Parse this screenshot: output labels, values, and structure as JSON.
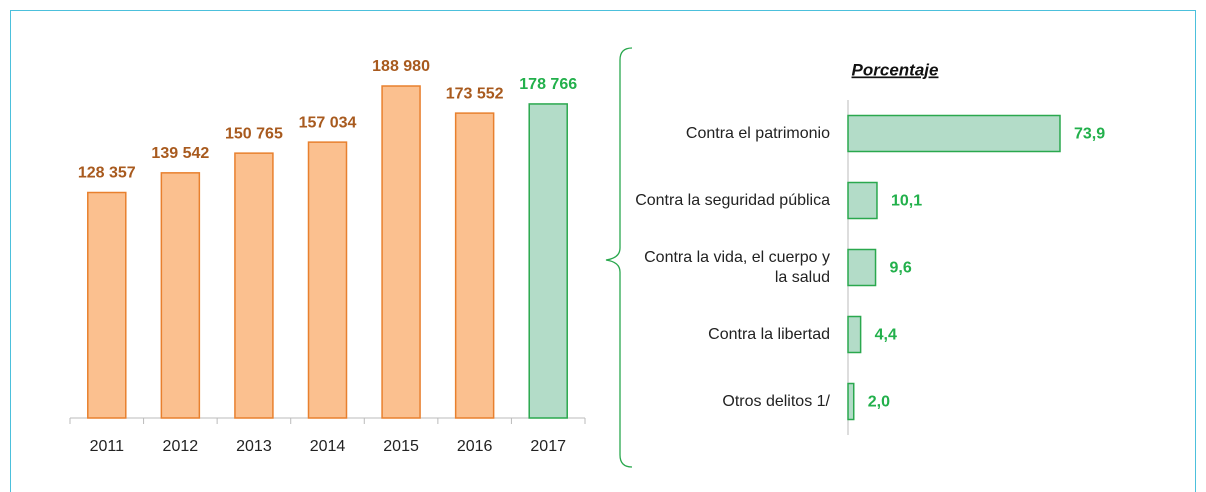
{
  "chart_data": [
    {
      "type": "bar",
      "categories": [
        "2011",
        "2012",
        "2013",
        "2014",
        "2015",
        "2016",
        "2017"
      ],
      "values": [
        128357,
        139542,
        150765,
        157034,
        188980,
        173552,
        178766
      ],
      "value_labels": [
        "128 357",
        "139 542",
        "150 765",
        "157 034",
        "188 980",
        "173 552",
        "178 766"
      ],
      "colors": [
        "#fbc08f",
        "#fbc08f",
        "#fbc08f",
        "#fbc08f",
        "#fbc08f",
        "#fbc08f",
        "#b3dcc8"
      ],
      "edge_colors": [
        "#e8802e",
        "#e8802e",
        "#e8802e",
        "#e8802e",
        "#e8802e",
        "#e8802e",
        "#2aa84e"
      ],
      "label_colors": [
        "#a85a1e",
        "#a85a1e",
        "#a85a1e",
        "#a85a1e",
        "#a85a1e",
        "#a85a1e",
        "#22b04b"
      ]
    },
    {
      "type": "hbar",
      "title": "Porcentaje",
      "categories": [
        "Contra el patrimonio",
        "Contra la seguridad pública",
        "Contra la vida, el cuerpo y la salud",
        "Contra la libertad",
        "Otros delitos 1/"
      ],
      "values": [
        73.9,
        10.1,
        9.6,
        4.4,
        2.0
      ],
      "value_labels": [
        "73,9",
        "10,1",
        "9,6",
        "4,4",
        "2,0"
      ],
      "color": "#b3dcc8",
      "edge_color": "#2aa84e",
      "label_color": "#22b04b"
    }
  ]
}
